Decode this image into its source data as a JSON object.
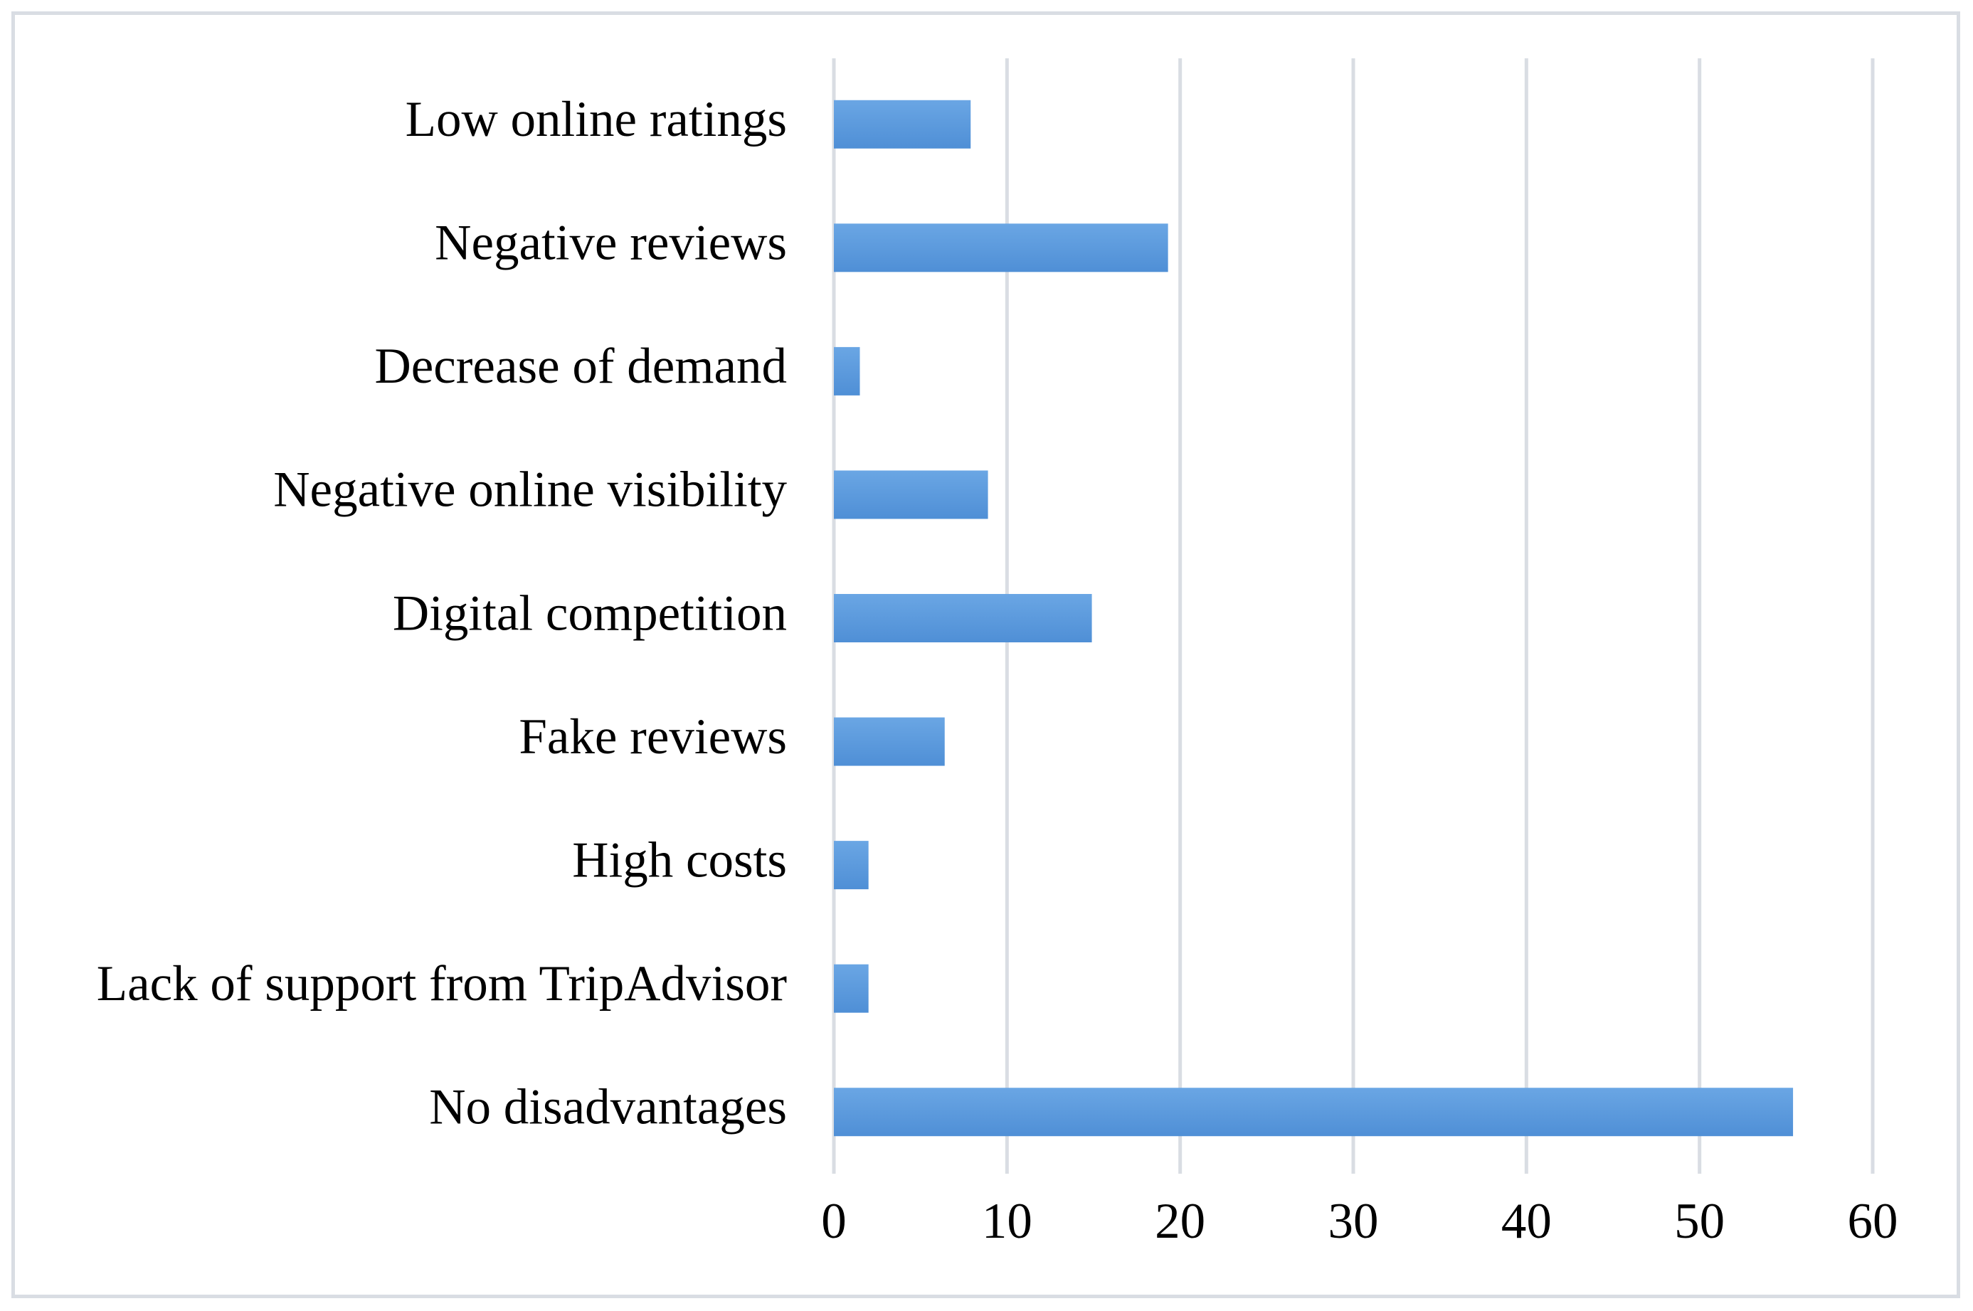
{
  "chart_data": {
    "type": "bar",
    "orientation": "horizontal",
    "title": "",
    "xlabel": "",
    "ylabel": "",
    "categories": [
      "Low online ratings",
      "Negative reviews",
      "Decrease of demand",
      "Negative online visibility",
      "Digital competition",
      "Fake reviews",
      "High costs",
      "Lack of support from TripAdvisor",
      "No disadvantages"
    ],
    "values": [
      7.9,
      19.3,
      1.5,
      8.9,
      14.9,
      6.4,
      2.0,
      2.0,
      55.4
    ],
    "xlim": [
      0,
      60
    ],
    "xticks": [
      "0",
      "10",
      "20",
      "30",
      "40",
      "50",
      "60"
    ],
    "grid": true,
    "legend": "none",
    "bar_color": "#4f8fd6",
    "bar_color_light": "#6aa6e4",
    "grid_color": "#d9dde3"
  }
}
